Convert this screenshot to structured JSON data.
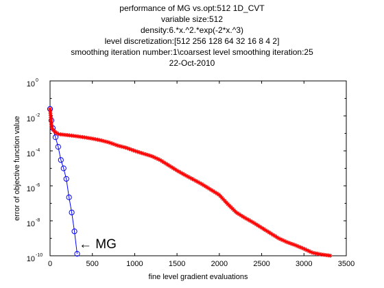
{
  "chart_data": {
    "type": "line",
    "title_lines": [
      "performance of MG vs.opt:512 1D_CVT",
      "variable size:512",
      "density:6.*x.^2.*exp(-2*x.^3)",
      "level discretization:[512 256 128 64 32 16 8 4 2]",
      "smoothing iteration number:1\\coarsest level smoothing iteration:25",
      "22-Oct-2010"
    ],
    "xlabel": "fine level gradient evaluations",
    "ylabel": "error of objective function value",
    "xlim": [
      0,
      3500
    ],
    "ylim_log10": [
      -10,
      0
    ],
    "yscale": "log",
    "x_ticks": [
      "0",
      "500",
      "1000",
      "1500",
      "2000",
      "2500",
      "3000",
      "3500"
    ],
    "y_ticks": [
      {
        "base": "10",
        "exp": "0"
      },
      {
        "base": "10",
        "exp": "-2"
      },
      {
        "base": "10",
        "exp": "-4"
      },
      {
        "base": "10",
        "exp": "-6"
      },
      {
        "base": "10",
        "exp": "-8"
      },
      {
        "base": "10",
        "exp": "-10"
      }
    ],
    "grid": false,
    "annotation": "← MG",
    "series": [
      {
        "name": "MG",
        "color": "#0000ff",
        "marker": "circle",
        "points": [
          [
            0,
            0.025
          ],
          [
            16,
            0.0055
          ],
          [
            32,
            0.002
          ],
          [
            64,
            0.0006
          ],
          [
            96,
            0.00017
          ],
          [
            128,
            3e-05
          ],
          [
            160,
            1e-05
          ],
          [
            192,
            2.5e-06
          ],
          [
            224,
            2.2e-07
          ],
          [
            256,
            3e-08
          ],
          [
            288,
            2.5e-09
          ],
          [
            320,
            1.3e-10
          ]
        ]
      },
      {
        "color": "#ff0000",
        "marker": "star",
        "points": [
          [
            0,
            0.025
          ],
          [
            20,
            0.002
          ],
          [
            60,
            0.0012
          ],
          [
            100,
            0.0009
          ],
          [
            200,
            0.0008
          ],
          [
            300,
            0.0007
          ],
          [
            400,
            0.0006
          ],
          [
            500,
            0.0005
          ],
          [
            600,
            0.0004
          ],
          [
            700,
            0.0003
          ],
          [
            800,
            0.0002
          ],
          [
            900,
            0.00015
          ],
          [
            1000,
            0.0001
          ],
          [
            1100,
            7e-05
          ],
          [
            1200,
            5e-05
          ],
          [
            1300,
            3e-05
          ],
          [
            1400,
            1.5e-05
          ],
          [
            1500,
            7.5e-06
          ],
          [
            1600,
            4e-06
          ],
          [
            1700,
            2.2e-06
          ],
          [
            1800,
            1.2e-06
          ],
          [
            1900,
            6e-07
          ],
          [
            2000,
            3e-07
          ],
          [
            2100,
            9e-08
          ],
          [
            2200,
            3e-08
          ],
          [
            2300,
            1.5e-08
          ],
          [
            2400,
            8e-09
          ],
          [
            2500,
            4e-09
          ],
          [
            2600,
            2e-09
          ],
          [
            2700,
            1e-09
          ],
          [
            2800,
            6e-10
          ],
          [
            2900,
            4e-10
          ],
          [
            3000,
            2.5e-10
          ],
          [
            3100,
            1.5e-10
          ],
          [
            3200,
            1.2e-10
          ],
          [
            3320,
            1e-10
          ]
        ]
      }
    ]
  }
}
